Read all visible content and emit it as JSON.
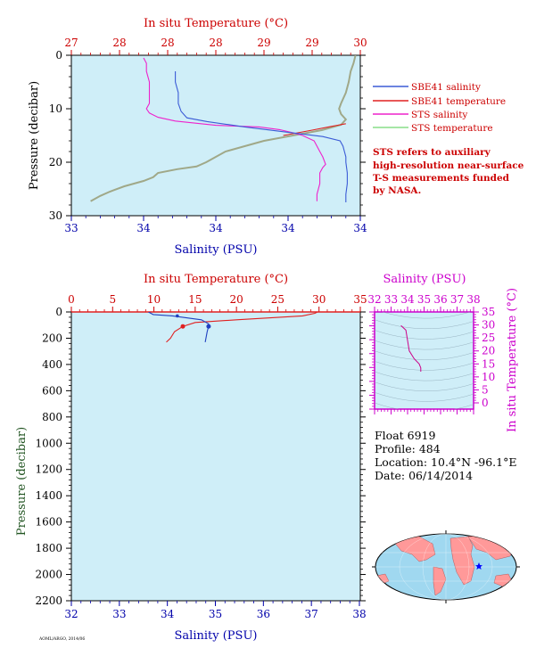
{
  "chart_data": [
    {
      "type": "line",
      "title": "",
      "top_axis": {
        "label": "In situ Temperature (°C)",
        "ticks": [
          "27",
          "28",
          "28",
          "28",
          "29",
          "29",
          "30"
        ],
        "range": [
          27,
          30
        ],
        "color": "#cc0000"
      },
      "x_axis": {
        "label": "Salinity (PSU)",
        "ticks": [
          "33",
          "34",
          "34",
          "34",
          "34"
        ],
        "range": [
          33,
          34
        ],
        "color": "#0000aa"
      },
      "y_axis": {
        "label": "Pressure (decibar)",
        "ticks": [
          "0",
          "10",
          "20",
          "30"
        ],
        "range": [
          0,
          30
        ],
        "inverted": true,
        "color": "#000000"
      },
      "background": "#cfeef8",
      "legend": {
        "placement": "right",
        "entries": [
          {
            "name": "SBE41 salinity",
            "color": "#3b5bd6"
          },
          {
            "name": "SBE41 temperature",
            "color": "#e02020"
          },
          {
            "name": "STS salinity",
            "color": "#ee22cc"
          },
          {
            "name": "STS temperature",
            "color": "#88dd88"
          }
        ]
      },
      "note": [
        "STS refers to auxiliary",
        "high-resolution near-surface",
        "T-S measurements funded",
        "by NASA."
      ],
      "series": [
        {
          "name": "STS temperature",
          "axis": "temperature",
          "color": "#a0a888",
          "points": [
            [
              29.95,
              0
            ],
            [
              29.93,
              1.5
            ],
            [
              29.9,
              3
            ],
            [
              29.88,
              5
            ],
            [
              29.85,
              7
            ],
            [
              29.8,
              9
            ],
            [
              29.78,
              10
            ],
            [
              29.8,
              11
            ],
            [
              29.85,
              12
            ],
            [
              29.8,
              13
            ],
            [
              29.6,
              14
            ],
            [
              29.3,
              15
            ],
            [
              29.0,
              16
            ],
            [
              28.8,
              17
            ],
            [
              28.6,
              18
            ],
            [
              28.5,
              19
            ],
            [
              28.4,
              20
            ],
            [
              28.3,
              20.8
            ],
            [
              28.1,
              21.3
            ],
            [
              27.9,
              22
            ],
            [
              27.85,
              22.8
            ],
            [
              27.75,
              23.5
            ],
            [
              27.55,
              24.5
            ],
            [
              27.4,
              25.5
            ],
            [
              27.3,
              26.3
            ],
            [
              27.2,
              27.3
            ]
          ]
        },
        {
          "name": "SBE41 temperature",
          "axis": "temperature",
          "color": "#e02020",
          "points": [
            [
              29.85,
              12.8
            ],
            [
              29.7,
              13.3
            ],
            [
              29.5,
              14
            ],
            [
              29.2,
              15
            ]
          ]
        },
        {
          "name": "STS salinity",
          "axis": "salinity",
          "color": "#ee22cc",
          "points": [
            [
              33.25,
              0.5
            ],
            [
              33.26,
              1.5
            ],
            [
              33.26,
              3
            ],
            [
              33.27,
              5
            ],
            [
              33.27,
              7
            ],
            [
              33.27,
              9
            ],
            [
              33.26,
              10
            ],
            [
              33.27,
              10.8
            ],
            [
              33.3,
              11.6
            ],
            [
              33.36,
              12.3
            ],
            [
              33.5,
              13.1
            ],
            [
              33.65,
              13.4
            ],
            [
              33.72,
              13.9
            ],
            [
              33.76,
              14.4
            ],
            [
              33.8,
              15
            ],
            [
              33.84,
              16
            ],
            [
              33.85,
              17
            ],
            [
              33.86,
              18
            ],
            [
              33.87,
              19
            ],
            [
              33.88,
              20.4
            ],
            [
              33.87,
              21
            ],
            [
              33.86,
              22
            ],
            [
              33.86,
              24
            ],
            [
              33.85,
              26
            ],
            [
              33.85,
              27.3
            ]
          ]
        },
        {
          "name": "SBE41 salinity",
          "axis": "salinity",
          "color": "#3b5bd6",
          "points": [
            [
              33.36,
              3
            ],
            [
              33.36,
              5
            ],
            [
              33.37,
              7
            ],
            [
              33.37,
              9
            ],
            [
              33.38,
              10.5
            ],
            [
              33.4,
              11.7
            ],
            [
              33.47,
              12.4
            ],
            [
              33.6,
              13.4
            ],
            [
              33.75,
              14.4
            ],
            [
              33.87,
              15.2
            ],
            [
              33.93,
              16
            ],
            [
              33.94,
              17
            ],
            [
              33.945,
              18
            ],
            [
              33.95,
              19
            ],
            [
              33.95,
              20
            ],
            [
              33.955,
              22
            ],
            [
              33.955,
              24
            ],
            [
              33.95,
              26
            ],
            [
              33.95,
              27.5
            ]
          ]
        }
      ]
    },
    {
      "type": "line",
      "title": "",
      "top_axis": {
        "label": "In situ Temperature (°C)",
        "ticks": [
          "0",
          "5",
          "10",
          "15",
          "20",
          "25",
          "30",
          "35"
        ],
        "range": [
          0,
          35
        ],
        "color": "#cc0000"
      },
      "x_axis": {
        "label": "Salinity (PSU)",
        "ticks": [
          "32",
          "33",
          "34",
          "35",
          "36",
          "37",
          "38"
        ],
        "range": [
          32,
          38
        ],
        "color": "#0000aa"
      },
      "y_axis": {
        "label": "Pressure (decibar)",
        "ticks": [
          "0",
          "200",
          "400",
          "600",
          "800",
          "1000",
          "1200",
          "1400",
          "1600",
          "1800",
          "2000",
          "2200"
        ],
        "range": [
          0,
          2200
        ],
        "inverted": true,
        "color": "#225522"
      },
      "background": "#cfeef8",
      "series": [
        {
          "name": "temperature",
          "axis": "temperature",
          "color": "#e02020",
          "points": [
            [
              29.8,
              0
            ],
            [
              29.5,
              10
            ],
            [
              28,
              30
            ],
            [
              20,
              60
            ],
            [
              15,
              80
            ],
            [
              13.5,
              110
            ],
            [
              12.5,
              150
            ],
            [
              12,
              200
            ],
            [
              11.5,
              230
            ]
          ],
          "marker": [
            13.5,
            110
          ]
        },
        {
          "name": "salinity",
          "axis": "salinity",
          "color": "#2040c0",
          "points": [
            [
              33.6,
              0
            ],
            [
              33.7,
              20
            ],
            [
              34.1,
              30
            ],
            [
              34.7,
              60
            ],
            [
              34.85,
              90
            ],
            [
              34.85,
              110
            ],
            [
              34.82,
              150
            ],
            [
              34.8,
              190
            ],
            [
              34.78,
              230
            ]
          ],
          "marker": [
            34.85,
            110
          ],
          "marker2": [
            34.2,
            30
          ]
        }
      ]
    },
    {
      "type": "scatter",
      "title": "",
      "x_axis": {
        "label": "Salinity (PSU)",
        "ticks": [
          "32",
          "33",
          "34",
          "35",
          "36",
          "37",
          "38"
        ],
        "range": [
          32,
          38
        ],
        "color": "#cc00cc"
      },
      "y_axis": {
        "label": "In situ Temperature (°C)",
        "ticks": [
          "0",
          "5",
          "10",
          "15",
          "20",
          "25",
          "30",
          "35"
        ],
        "range": [
          0,
          35
        ],
        "color": "#cc00cc"
      },
      "series": [
        {
          "name": "T-S",
          "color": "#cc0088",
          "points": [
            [
              33.6,
              29.8
            ],
            [
              33.9,
              28
            ],
            [
              34.0,
              24
            ],
            [
              34.1,
              20
            ],
            [
              34.4,
              17
            ],
            [
              34.7,
              15
            ],
            [
              34.8,
              13.5
            ],
            [
              34.8,
              12
            ]
          ]
        }
      ]
    }
  ],
  "info": {
    "float": "Float  6919",
    "profile": "Profile:  484",
    "location": "Location:  10.4°N  -96.1°E",
    "date": "Date:  06/14/2014"
  },
  "map": {
    "ocean_color": "#a0d8f0",
    "land_color": "#ff9999",
    "marker_color": "#0000ff"
  },
  "footer": "AOML/ARGO, 2014/06"
}
